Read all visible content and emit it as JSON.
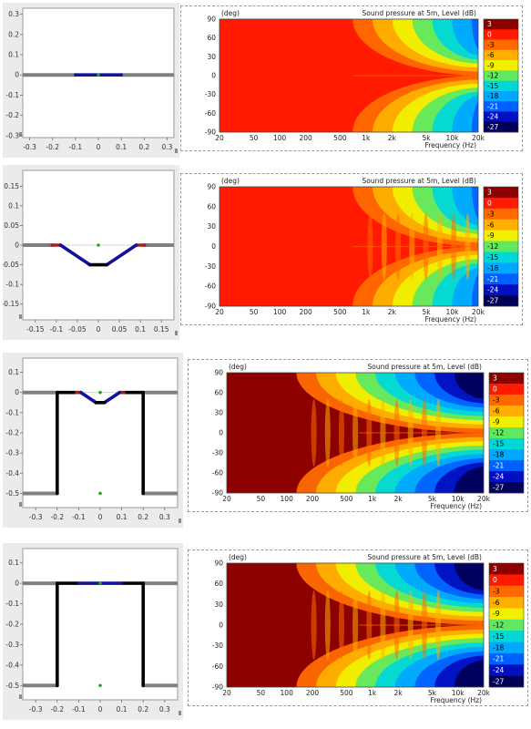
{
  "colors": {
    "black": "#000000",
    "blue": "#12129a",
    "gray": "#808080",
    "red": "#b01818",
    "green": "#2aa02a",
    "frame": "#ffffff"
  },
  "colorbar": {
    "levels": [
      "3",
      "0",
      "-3",
      "-6",
      "-9",
      "-12",
      "-15",
      "-18",
      "-21",
      "-24",
      "-27"
    ],
    "colors": [
      "#8c0000",
      "#ff1a00",
      "#ff6a00",
      "#ffb000",
      "#f0f000",
      "#60e860",
      "#00d8d8",
      "#00a8ff",
      "#0060ff",
      "#0010c0",
      "#000058"
    ]
  },
  "chart_data": [
    {
      "type": "line",
      "title": "",
      "xticks": [
        "-0.3",
        "-0.2",
        "-0.1",
        "0",
        "0.1",
        "0.2",
        "0.3"
      ],
      "yticks": [
        "0.3",
        "0.2",
        "0.1",
        "0",
        "-0.1",
        "-0.2",
        "-0.3"
      ],
      "xlim": [
        -0.33,
        0.33
      ],
      "ylim": [
        -0.31,
        0.33
      ],
      "segments": [
        {
          "points": [
            [
              -0.33,
              0
            ],
            [
              -0.1,
              0
            ]
          ],
          "color": "gray"
        },
        {
          "points": [
            [
              0.1,
              0
            ],
            [
              0.33,
              0
            ]
          ],
          "color": "gray"
        },
        {
          "points": [
            [
              -0.1,
              0
            ],
            [
              0.1,
              0
            ]
          ],
          "color": "blue"
        }
      ],
      "dots": [
        [
          0,
          0
        ]
      ]
    },
    {
      "type": "heatmap",
      "title": "Sound pressure at 5m, Level  (dB)",
      "ylabel": "(deg)",
      "xlabel": "Frequency  (Hz)",
      "yticks": [
        "90",
        "60",
        "30",
        "0",
        "-30",
        "-60",
        "-90"
      ],
      "xticks": [
        "20",
        "50",
        "100",
        "200",
        "500",
        "1k",
        "2k",
        "5k",
        "10k",
        "20k"
      ],
      "xlim": [
        20,
        20000
      ],
      "ylim": [
        -90,
        90
      ],
      "x_scale": "log"
    },
    {
      "type": "line",
      "title": "",
      "xticks": [
        "-0.15",
        "-0.1",
        "-0.05",
        "0",
        "0.05",
        "0.1",
        "0.15"
      ],
      "yticks": [
        "0.15",
        "0.1",
        "0.05",
        "0",
        "-0.05",
        "-0.1",
        "-0.15"
      ],
      "xlim": [
        -0.18,
        0.18
      ],
      "ylim": [
        -0.19,
        0.19
      ],
      "segments": [
        {
          "points": [
            [
              -0.18,
              0
            ],
            [
              -0.11,
              0
            ]
          ],
          "color": "gray"
        },
        {
          "points": [
            [
              0.11,
              0
            ],
            [
              0.18,
              0
            ]
          ],
          "color": "gray"
        },
        {
          "points": [
            [
              -0.11,
              0
            ],
            [
              -0.09,
              0
            ]
          ],
          "color": "red"
        },
        {
          "points": [
            [
              0.09,
              0
            ],
            [
              0.11,
              0
            ]
          ],
          "color": "red"
        },
        {
          "points": [
            [
              -0.09,
              0
            ],
            [
              -0.02,
              -0.05
            ]
          ],
          "color": "blue"
        },
        {
          "points": [
            [
              0.02,
              -0.05
            ],
            [
              0.09,
              0
            ]
          ],
          "color": "blue"
        },
        {
          "points": [
            [
              -0.02,
              -0.05
            ],
            [
              0.02,
              -0.05
            ]
          ],
          "color": "black"
        }
      ],
      "dots": [
        [
          0,
          0
        ]
      ]
    },
    {
      "type": "heatmap",
      "title": "Sound pressure at 5m, Level  (dB)",
      "ylabel": "(deg)",
      "xlabel": "Frequency  (Hz)",
      "yticks": [
        "90",
        "60",
        "30",
        "0",
        "-30",
        "-60",
        "-90"
      ],
      "xticks": [
        "20",
        "50",
        "100",
        "200",
        "500",
        "1k",
        "2k",
        "5k",
        "10k",
        "20k"
      ],
      "xlim": [
        20,
        20000
      ],
      "ylim": [
        -90,
        90
      ],
      "x_scale": "log"
    },
    {
      "type": "line",
      "title": "",
      "xticks": [
        "-0.3",
        "-0.2",
        "-0.1",
        "0",
        "0.1",
        "0.2",
        "0.3"
      ],
      "yticks": [
        "0.1",
        "0",
        "-0.1",
        "-0.2",
        "-0.3",
        "-0.4",
        "-0.5"
      ],
      "xlim": [
        -0.36,
        0.36
      ],
      "ylim": [
        -0.57,
        0.17
      ],
      "segments": [
        {
          "points": [
            [
              -0.36,
              0
            ],
            [
              -0.2,
              0
            ]
          ],
          "color": "gray"
        },
        {
          "points": [
            [
              0.2,
              0
            ],
            [
              0.36,
              0
            ]
          ],
          "color": "gray"
        },
        {
          "points": [
            [
              -0.36,
              -0.5
            ],
            [
              -0.2,
              -0.5
            ]
          ],
          "color": "gray"
        },
        {
          "points": [
            [
              0.2,
              -0.5
            ],
            [
              0.36,
              -0.5
            ]
          ],
          "color": "gray"
        },
        {
          "points": [
            [
              -0.2,
              -0.5
            ],
            [
              -0.2,
              0
            ]
          ],
          "color": "black"
        },
        {
          "points": [
            [
              0.2,
              -0.5
            ],
            [
              0.2,
              0
            ]
          ],
          "color": "black"
        },
        {
          "points": [
            [
              -0.2,
              0
            ],
            [
              -0.11,
              0
            ]
          ],
          "color": "black"
        },
        {
          "points": [
            [
              0.11,
              0
            ],
            [
              0.2,
              0
            ]
          ],
          "color": "black"
        },
        {
          "points": [
            [
              -0.11,
              0
            ],
            [
              -0.09,
              0
            ]
          ],
          "color": "red"
        },
        {
          "points": [
            [
              0.09,
              0
            ],
            [
              0.11,
              0
            ]
          ],
          "color": "red"
        },
        {
          "points": [
            [
              -0.09,
              0
            ],
            [
              -0.02,
              -0.05
            ]
          ],
          "color": "blue"
        },
        {
          "points": [
            [
              0.02,
              -0.05
            ],
            [
              0.09,
              0
            ]
          ],
          "color": "blue"
        },
        {
          "points": [
            [
              -0.02,
              -0.05
            ],
            [
              0.02,
              -0.05
            ]
          ],
          "color": "black"
        }
      ],
      "dots": [
        [
          0,
          0
        ],
        [
          0,
          -0.5
        ]
      ]
    },
    {
      "type": "heatmap",
      "title": "Sound pressure at 5m, Level  (dB)",
      "ylabel": "(deg)",
      "xlabel": "Frequency  (Hz)",
      "yticks": [
        "90",
        "60",
        "30",
        "0",
        "-30",
        "-60",
        "-90"
      ],
      "xticks": [
        "20",
        "50",
        "100",
        "200",
        "500",
        "1k",
        "2k",
        "5k",
        "10k",
        "20k"
      ],
      "xlim": [
        20,
        20000
      ],
      "ylim": [
        -90,
        90
      ],
      "x_scale": "log"
    },
    {
      "type": "line",
      "title": "",
      "xticks": [
        "-0.3",
        "-0.2",
        "-0.1",
        "0",
        "0.1",
        "0.2",
        "0.3"
      ],
      "yticks": [
        "0.1",
        "0",
        "-0.1",
        "-0.2",
        "-0.3",
        "-0.4",
        "-0.5"
      ],
      "xlim": [
        -0.36,
        0.36
      ],
      "ylim": [
        -0.57,
        0.17
      ],
      "segments": [
        {
          "points": [
            [
              -0.36,
              0
            ],
            [
              -0.2,
              0
            ]
          ],
          "color": "gray"
        },
        {
          "points": [
            [
              0.2,
              0
            ],
            [
              0.36,
              0
            ]
          ],
          "color": "gray"
        },
        {
          "points": [
            [
              -0.36,
              -0.5
            ],
            [
              -0.2,
              -0.5
            ]
          ],
          "color": "gray"
        },
        {
          "points": [
            [
              0.2,
              -0.5
            ],
            [
              0.36,
              -0.5
            ]
          ],
          "color": "gray"
        },
        {
          "points": [
            [
              -0.2,
              -0.5
            ],
            [
              -0.2,
              0
            ]
          ],
          "color": "black"
        },
        {
          "points": [
            [
              0.2,
              -0.5
            ],
            [
              0.2,
              0
            ]
          ],
          "color": "black"
        },
        {
          "points": [
            [
              -0.2,
              0
            ],
            [
              -0.1,
              0
            ]
          ],
          "color": "black"
        },
        {
          "points": [
            [
              0.1,
              0
            ],
            [
              0.2,
              0
            ]
          ],
          "color": "black"
        },
        {
          "points": [
            [
              -0.1,
              0
            ],
            [
              0.1,
              0
            ]
          ],
          "color": "blue"
        }
      ],
      "dots": [
        [
          0,
          0
        ],
        [
          0,
          -0.5
        ]
      ]
    },
    {
      "type": "heatmap",
      "title": "Sound pressure at 5m, Level  (dB)",
      "ylabel": "(deg)",
      "xlabel": "Frequency  (Hz)",
      "yticks": [
        "90",
        "60",
        "30",
        "0",
        "-30",
        "-60",
        "-90"
      ],
      "xticks": [
        "20",
        "50",
        "100",
        "200",
        "500",
        "1k",
        "2k",
        "5k",
        "10k",
        "20k"
      ],
      "xlim": [
        20,
        20000
      ],
      "ylim": [
        -90,
        90
      ],
      "x_scale": "log"
    }
  ]
}
